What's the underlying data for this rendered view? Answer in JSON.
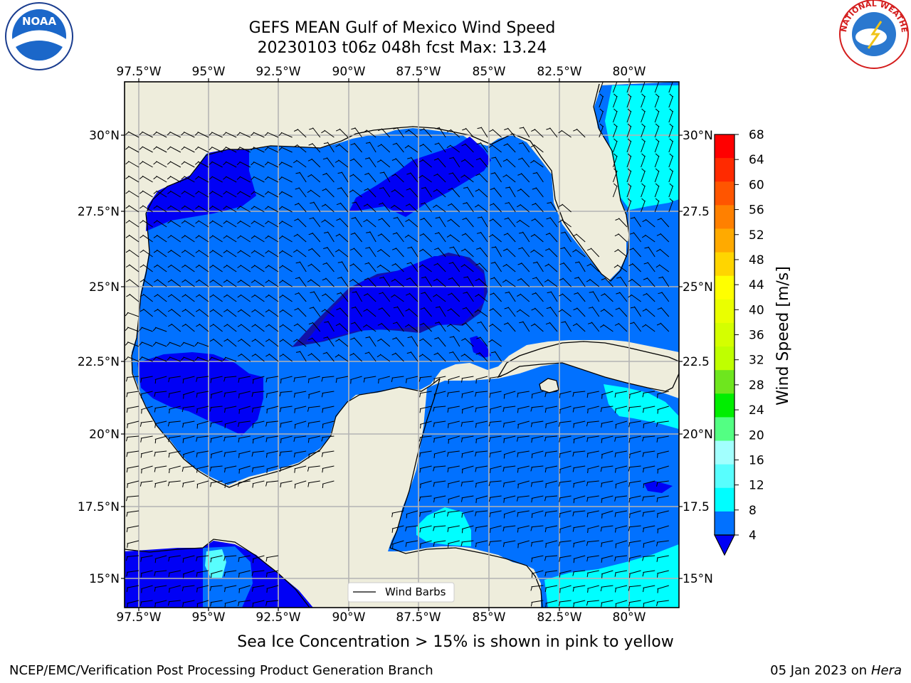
{
  "header": {
    "title_line1": "GEFS MEAN Gulf of Mexico Wind Speed",
    "title_line2": "20230103 t06z 048h fcst   Max: 13.24"
  },
  "map": {
    "lon_labels": [
      "97.5°W",
      "95°W",
      "92.5°W",
      "90°W",
      "87.5°W",
      "85°W",
      "82.5°W",
      "80°W"
    ],
    "lat_labels": [
      "30°N",
      "27.5°N",
      "25°N",
      "22.5°N",
      "20°N",
      "17.5°N",
      "15°N"
    ],
    "lat_labels_right": [
      "30°N",
      "27.5",
      "25°N",
      "22.5",
      "20°N",
      "17.5",
      "15°N"
    ],
    "legend_label": "Wind Barbs",
    "colors": {
      "land": "#eeeddc",
      "c1": "#0000f5",
      "c2": "#0171ff",
      "c3": "#00feff",
      "c4": "#1212a8",
      "grid": "#b4b4b4"
    }
  },
  "colorbar": {
    "label": "Wind Speed [m/s]",
    "ticks": [
      "68",
      "64",
      "60",
      "56",
      "52",
      "48",
      "44",
      "40",
      "36",
      "32",
      "28",
      "24",
      "20",
      "16",
      "12",
      "8",
      "4"
    ],
    "colors": [
      "#ff0000",
      "#ff2a00",
      "#ff5500",
      "#ff8000",
      "#ffaa00",
      "#ffd500",
      "#ffff00",
      "#eaff00",
      "#d4ff00",
      "#bfff00",
      "#6ee61e",
      "#00ee00",
      "#53ff83",
      "#a2fffe",
      "#58fefe",
      "#00feff",
      "#0171ff"
    ],
    "under_color": "#0000f5"
  },
  "footer": {
    "ice_note": "Sea Ice Concentration > 15% is shown in pink to yellow",
    "credit": "NCEP/EMC/Verification Post Processing Product Generation Branch",
    "date": "05 Jan 2023 on ",
    "machine": "Hera"
  },
  "logos": {
    "noaa_text": "NOAA",
    "nws_text": "NATIONAL WEATHER SERVICE"
  }
}
